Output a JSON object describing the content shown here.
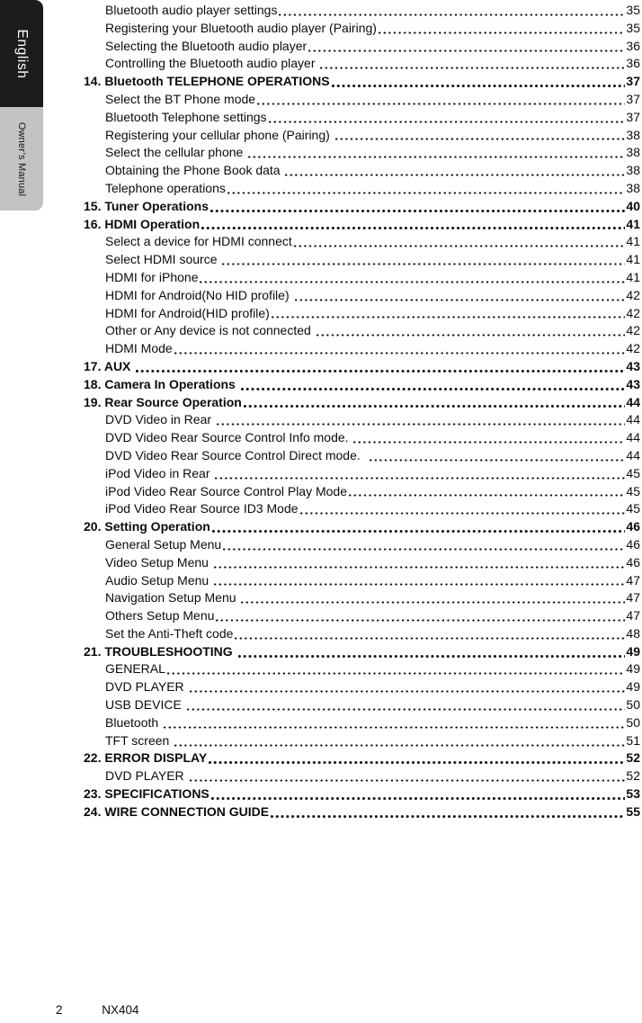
{
  "sidebar": {
    "language_tab": "English",
    "manual_tab": "Owner’s Manual"
  },
  "toc": {
    "entries": [
      {
        "label": "Bluetooth audio player settings",
        "page": "35",
        "bold": false
      },
      {
        "label": "Registering your Bluetooth audio player (Pairing)",
        "page": "35",
        "bold": false
      },
      {
        "label": "Selecting the Bluetooth audio player",
        "page": "36",
        "bold": false
      },
      {
        "label": "Controlling the Bluetooth audio player ",
        "page": "36",
        "bold": false
      },
      {
        "label": "14. Bluetooth TELEPHONE OPERATIONS",
        "page": "37",
        "bold": true
      },
      {
        "label": "Select the BT Phone mode",
        "page": "37",
        "bold": false
      },
      {
        "label": "Bluetooth Telephone settings",
        "page": "37",
        "bold": false
      },
      {
        "label": "Registering your cellular phone (Pairing) ",
        "page": "38",
        "bold": false
      },
      {
        "label": "Select the cellular phone ",
        "page": "38",
        "bold": false
      },
      {
        "label": "Obtaining the Phone Book data ",
        "page": "38",
        "bold": false
      },
      {
        "label": "Telephone operations",
        "page": "38",
        "bold": false
      },
      {
        "label": "15. Tuner Operations",
        "page": "40",
        "bold": true
      },
      {
        "label": "16. HDMI Operation",
        "page": "41",
        "bold": true
      },
      {
        "label": "Select a device for HDMI connect",
        "page": "41",
        "bold": false
      },
      {
        "label": "Select HDMI source ",
        "page": "41",
        "bold": false
      },
      {
        "label": "HDMI for iPhone",
        "page": "41",
        "bold": false
      },
      {
        "label": "HDMI for Android(No HID profile) ",
        "page": "42",
        "bold": false
      },
      {
        "label": "HDMI for Android(HID profile)",
        "page": "42",
        "bold": false
      },
      {
        "label": "Other or Any device is not connected ",
        "page": "42",
        "bold": false
      },
      {
        "label": "HDMI Mode",
        "page": "42",
        "bold": false
      },
      {
        "label": "17. AUX ",
        "page": "43",
        "bold": true
      },
      {
        "label": "18. Camera In Operations ",
        "page": "43",
        "bold": true
      },
      {
        "label": "19. Rear Source Operation",
        "page": "44",
        "bold": true
      },
      {
        "label": "DVD Video in Rear ",
        "page": "44",
        "bold": false
      },
      {
        "label": "DVD Video Rear Source Control Info mode. ",
        "page": "44",
        "bold": false
      },
      {
        "label": "DVD Video Rear Source Control Direct mode.  ",
        "page": "44",
        "bold": false
      },
      {
        "label": "iPod Video in Rear ",
        "page": "45",
        "bold": false
      },
      {
        "label": "iPod Video Rear Source Control Play Mode",
        "page": "45",
        "bold": false
      },
      {
        "label": "iPod Video Rear Source ID3 Mode",
        "page": "45",
        "bold": false
      },
      {
        "label": "20. Setting Operation",
        "page": "46",
        "bold": true
      },
      {
        "label": "General Setup Menu",
        "page": "46",
        "bold": false
      },
      {
        "label": "Video Setup Menu ",
        "page": "46",
        "bold": false
      },
      {
        "label": "Audio Setup Menu ",
        "page": "47",
        "bold": false
      },
      {
        "label": "Navigation Setup Menu ",
        "page": "47",
        "bold": false
      },
      {
        "label": "Others Setup Menu",
        "page": "47",
        "bold": false
      },
      {
        "label": "Set the Anti-Theft code",
        "page": "48",
        "bold": false
      },
      {
        "label": "21. TROUBLESHOOTING ",
        "page": "49",
        "bold": true
      },
      {
        "label": "GENERAL",
        "page": "49",
        "bold": false
      },
      {
        "label": "DVD PLAYER ",
        "page": "49",
        "bold": false
      },
      {
        "label": "USB DEVICE ",
        "page": "50",
        "bold": false
      },
      {
        "label": "Bluetooth ",
        "page": "50",
        "bold": false
      },
      {
        "label": "TFT screen ",
        "page": "51",
        "bold": false
      },
      {
        "label": "22. ERROR DISPLAY",
        "page": "52",
        "bold": true
      },
      {
        "label": "DVD PLAYER ",
        "page": "52",
        "bold": false
      },
      {
        "label": "23. SPECIFICATIONS",
        "page": "53",
        "bold": true
      },
      {
        "label": "24. WIRE CONNECTION GUIDE",
        "page": "55",
        "bold": true
      }
    ]
  },
  "footer": {
    "page_number": "2",
    "model": "NX404"
  },
  "colors": {
    "tab_dark": "#1c1c1e",
    "tab_gray": "#c3c3c5",
    "text": "#0b0b0b"
  }
}
